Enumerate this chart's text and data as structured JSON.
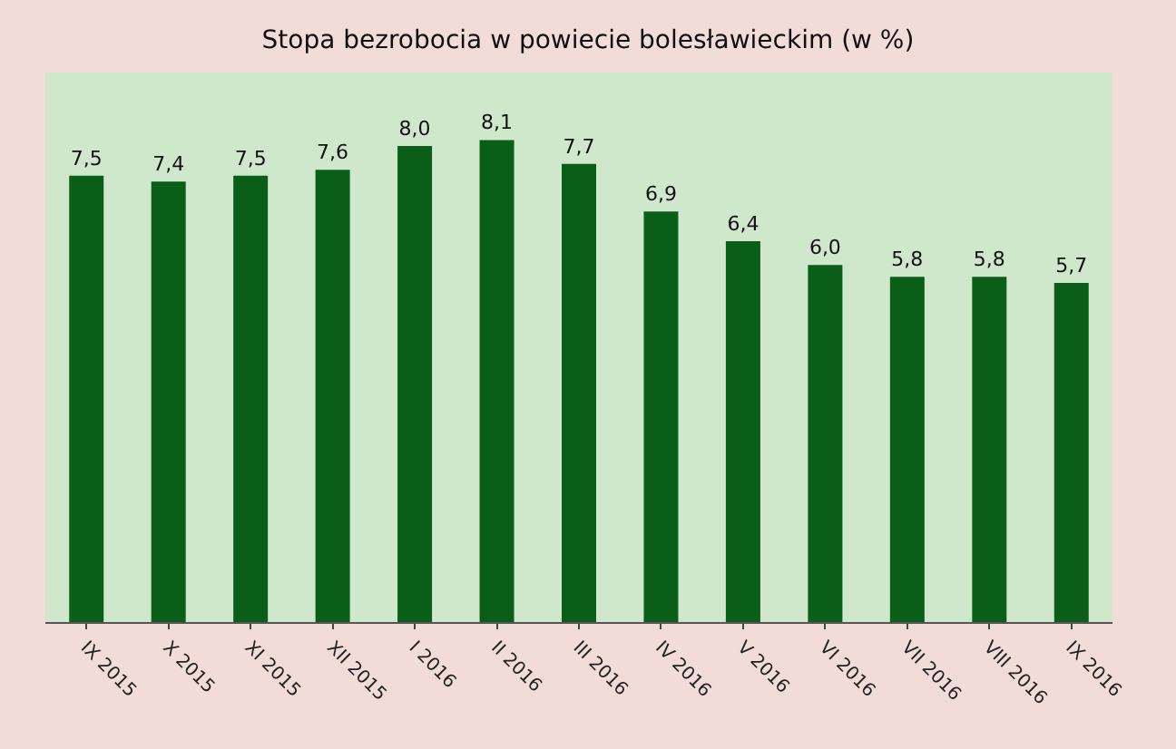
{
  "chart_data": {
    "type": "bar",
    "title": "Stopa bezrobocia w powiecie bolesławieckim (w %)",
    "categories": [
      "IX 2015",
      "X 2015",
      "XI 2015",
      "XII 2015",
      "I 2016",
      "II 2016",
      "III 2016",
      "IV 2016",
      "V 2016",
      "VI 2016",
      "VII 2016",
      "VIII 2016",
      "IX 2016"
    ],
    "values": [
      7.5,
      7.4,
      7.5,
      7.6,
      8.0,
      8.1,
      7.7,
      6.9,
      6.4,
      6.0,
      5.8,
      5.8,
      5.7
    ],
    "value_labels": [
      "7,5",
      "7,4",
      "7,5",
      "7,6",
      "8,0",
      "8,1",
      "7,7",
      "6,9",
      "6,4",
      "6,0",
      "5,8",
      "5,8",
      "5,7"
    ],
    "color": "#0b5e17",
    "grid": false,
    "legend": false
  }
}
